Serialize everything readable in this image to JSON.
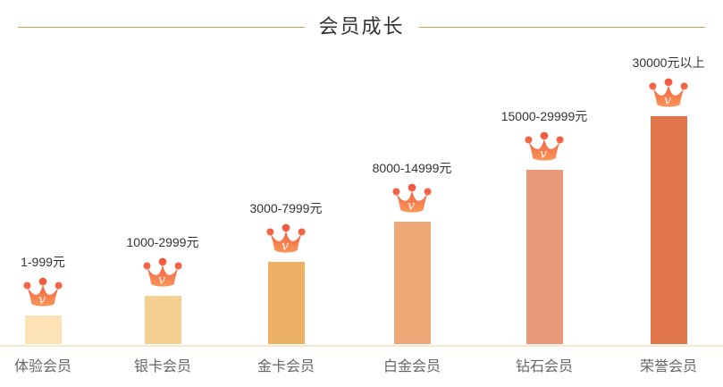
{
  "header": {
    "title": "会员成长"
  },
  "theme": {
    "background": "#ffffff",
    "divider_gold": "#c6a45a",
    "baseline_color": "#f6e7d0",
    "title_color": "#333333",
    "price_label_color": "#333333",
    "tier_name_color": "#666666",
    "crown_gradient_top": "#f0503e",
    "crown_gradient_bottom": "#fba25c",
    "crown_letter": "v"
  },
  "chart_data": {
    "type": "bar",
    "title": "会员成长",
    "categories": [
      "体验会员",
      "银卡会员",
      "金卡会员",
      "白金会员",
      "钻石会员",
      "荣誉会员"
    ],
    "value_labels": [
      "1-999元",
      "1000-2999元",
      "3000-7999元",
      "8000-14999元",
      "15000-29999元",
      "30000元以上"
    ],
    "values": [
      32,
      54,
      92,
      137,
      195,
      255
    ],
    "values_note": "relative bar heights in px; chart shows no numeric axis",
    "bar_colors": [
      "#fce2b4",
      "#f3d092",
      "#ecb164",
      "#eea878",
      "#e9987a",
      "#e0764a"
    ],
    "xlabel": "",
    "ylabel": "",
    "grid": false,
    "legend": false,
    "marker": "crown-icon above each bar"
  }
}
